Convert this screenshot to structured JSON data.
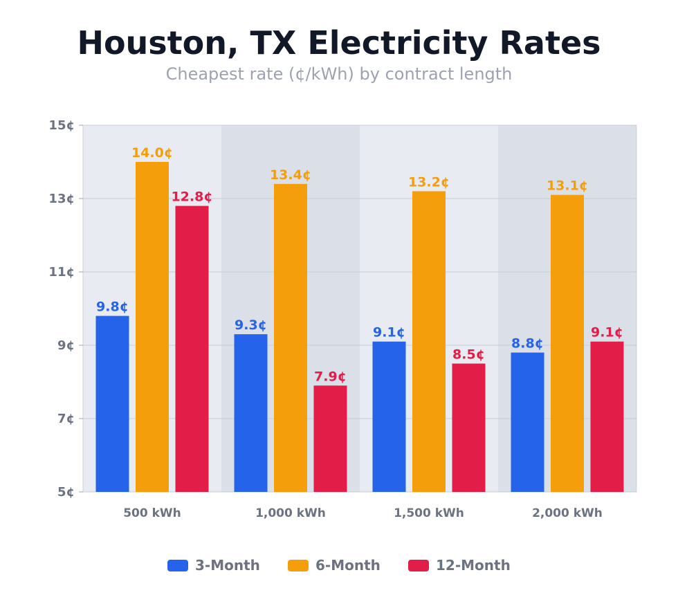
{
  "chart_data": {
    "type": "bar",
    "title": "Houston, TX Electricity Rates",
    "subtitle": "Cheapest rate (¢/kWh) by contract length",
    "xlabel": "",
    "ylabel": "",
    "unit_suffix": "¢",
    "categories": [
      "500 kWh",
      "1,000 kWh",
      "1,500 kWh",
      "2,000 kWh"
    ],
    "series": [
      {
        "name": "3-Month",
        "color": "#2563eb",
        "values": [
          9.8,
          9.3,
          9.1,
          8.8
        ]
      },
      {
        "name": "6-Month",
        "color": "#f59e0b",
        "values": [
          14.0,
          13.4,
          13.2,
          13.1
        ]
      },
      {
        "name": "12-Month",
        "color": "#e11d48",
        "values": [
          12.8,
          7.9,
          8.5,
          9.1
        ]
      }
    ],
    "ylim": [
      5,
      15
    ],
    "yticks": [
      5,
      7,
      9,
      11,
      13,
      15
    ],
    "ytick_labels": [
      "5¢",
      "7¢",
      "9¢",
      "11¢",
      "13¢",
      "15¢"
    ],
    "data_labels": [
      [
        "9.8¢",
        "9.3¢",
        "9.1¢",
        "8.8¢"
      ],
      [
        "14.0¢",
        "13.4¢",
        "13.2¢",
        "13.1¢"
      ],
      [
        "12.8¢",
        "7.9¢",
        "8.5¢",
        "9.1¢"
      ]
    ],
    "grid": true,
    "alternating_band_colors": [
      "#e8ebf1",
      "#dadfe8"
    ],
    "legend_position": "bottom"
  }
}
